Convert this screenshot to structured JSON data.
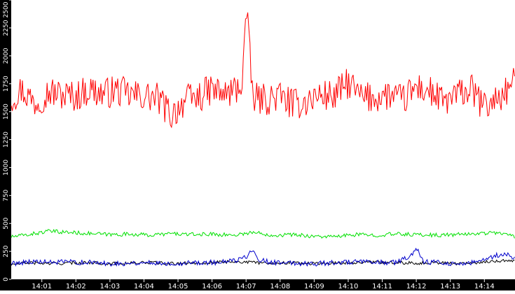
{
  "chart_data": {
    "type": "line",
    "title": "",
    "xlabel": "",
    "ylabel": "",
    "ylim": [
      0,
      2500
    ],
    "yticks": [
      "0",
      "250",
      "500",
      "750",
      "1000",
      "1250",
      "1500",
      "1750",
      "2000",
      "2250",
      "2500"
    ],
    "y_tick_values": [
      0,
      250,
      500,
      750,
      1000,
      1250,
      1500,
      1750,
      2000,
      2250,
      2500
    ],
    "xticks": [
      "14:01",
      "14:02",
      "14:03",
      "14:04",
      "14:05",
      "14:06",
      "14:07",
      "14:08",
      "14:09",
      "14:10",
      "14:11",
      "14:12",
      "14:13",
      "14:14"
    ],
    "x_tick_minutes": [
      1,
      2,
      3,
      4,
      5,
      6,
      7,
      8,
      9,
      10,
      11,
      12,
      13,
      14
    ],
    "xlim_minutes": [
      0.1,
      14.9
    ],
    "grid": false,
    "legend": "none",
    "series": [
      {
        "color": "#ff0000",
        "x_minutes": [
          0.1,
          0.4,
          0.8,
          1.2,
          1.6,
          2.0,
          2.4,
          2.8,
          3.2,
          3.6,
          4.0,
          4.4,
          4.8,
          5.2,
          5.6,
          6.0,
          6.4,
          6.8,
          6.9,
          7.0,
          7.2,
          7.6,
          8.0,
          8.4,
          8.8,
          9.2,
          9.6,
          10.0,
          10.4,
          10.8,
          11.2,
          11.6,
          12.0,
          12.4,
          12.8,
          13.2,
          13.6,
          14.0,
          14.4,
          14.9
        ],
        "values": [
          1620,
          1700,
          1580,
          1680,
          1650,
          1640,
          1700,
          1660,
          1690,
          1650,
          1640,
          1620,
          1470,
          1600,
          1630,
          1700,
          1650,
          1720,
          1800,
          2450,
          1620,
          1610,
          1640,
          1560,
          1600,
          1650,
          1640,
          1760,
          1620,
          1630,
          1650,
          1600,
          1720,
          1680,
          1580,
          1650,
          1700,
          1540,
          1620,
          1760
        ]
      },
      {
        "color": "#00e000",
        "x_minutes": [
          0.1,
          0.6,
          1.2,
          1.8,
          2.4,
          3.0,
          3.6,
          4.2,
          4.8,
          5.4,
          6.0,
          6.6,
          7.2,
          7.8,
          8.4,
          9.0,
          9.6,
          10.2,
          10.8,
          11.4,
          12.0,
          12.6,
          13.2,
          13.8,
          14.4,
          14.9
        ],
        "values": [
          380,
          400,
          430,
          420,
          410,
          400,
          405,
          395,
          410,
          400,
          405,
          395,
          420,
          395,
          400,
          385,
          380,
          400,
          395,
          405,
          400,
          395,
          400,
          410,
          420,
          380
        ]
      },
      {
        "color": "#000000",
        "x_minutes": [
          0.1,
          0.6,
          1.2,
          1.8,
          2.4,
          3.0,
          3.6,
          4.2,
          4.8,
          5.4,
          6.0,
          6.6,
          7.2,
          7.8,
          8.4,
          9.0,
          9.6,
          10.2,
          10.8,
          11.4,
          12.0,
          12.6,
          13.2,
          13.8,
          14.4,
          14.9
        ],
        "values": [
          130,
          150,
          140,
          145,
          150,
          140,
          145,
          150,
          140,
          145,
          150,
          160,
          150,
          145,
          150,
          140,
          145,
          150,
          155,
          150,
          145,
          150,
          140,
          150,
          165,
          170
        ]
      },
      {
        "color": "#0000cc",
        "x_minutes": [
          0.1,
          0.6,
          1.2,
          1.8,
          2.4,
          3.0,
          3.6,
          4.2,
          4.8,
          5.4,
          6.0,
          6.6,
          7.0,
          7.2,
          7.4,
          7.8,
          8.4,
          9.0,
          9.6,
          10.2,
          10.8,
          11.4,
          11.8,
          12.0,
          12.2,
          12.6,
          13.2,
          13.8,
          14.2,
          14.6,
          14.9
        ],
        "values": [
          140,
          160,
          150,
          155,
          150,
          140,
          145,
          150,
          140,
          150,
          150,
          160,
          200,
          280,
          170,
          150,
          145,
          140,
          150,
          155,
          150,
          150,
          200,
          280,
          160,
          150,
          140,
          150,
          200,
          230,
          180
        ]
      }
    ]
  }
}
